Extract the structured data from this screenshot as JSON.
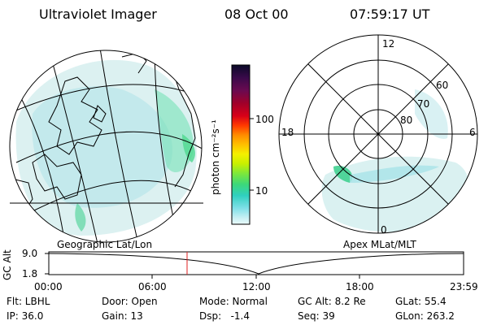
{
  "header": {
    "title": "Ultraviolet Imager",
    "date": "08 Oct 00",
    "time": "07:59:17 UT"
  },
  "colorbar": {
    "unit_label": "photon cm⁻²s⁻¹",
    "ticks": [
      "100",
      "10"
    ],
    "colors": [
      "#0a0a28",
      "#3a0a4a",
      "#6a0a50",
      "#a0002a",
      "#d80018",
      "#ff3a00",
      "#ff8c00",
      "#ffc000",
      "#f4f000",
      "#c8f000",
      "#7ee83a",
      "#3cd87a",
      "#30d0c0",
      "#80e0e8",
      "#c8f0f4",
      "#eafafa"
    ]
  },
  "left_panel": {
    "caption": "Geographic Lat/Lon"
  },
  "right_panel": {
    "caption": "Apex MLat/MLT",
    "ring_labels": [
      "60",
      "70",
      "80"
    ],
    "clock_labels": [
      "12",
      "18",
      "6",
      "0"
    ]
  },
  "altitude_plot": {
    "ylabel": "GC Alt",
    "yticks": [
      "9.0",
      "1.8"
    ],
    "xticks": [
      "00:00",
      "06:00",
      "12:00",
      "18:00",
      "23:59"
    ],
    "current_fraction": 0.333
  },
  "info": {
    "row1": [
      "Flt: LBHL",
      "Door: Open",
      "Mode: Normal",
      "GC Alt: 8.2 Re",
      "GLat: 55.4"
    ],
    "row2": [
      "IP: 36.0",
      "Gain: 13",
      "Dsp:   -1.4",
      "Seq: 39",
      "GLon: 263.2"
    ]
  }
}
